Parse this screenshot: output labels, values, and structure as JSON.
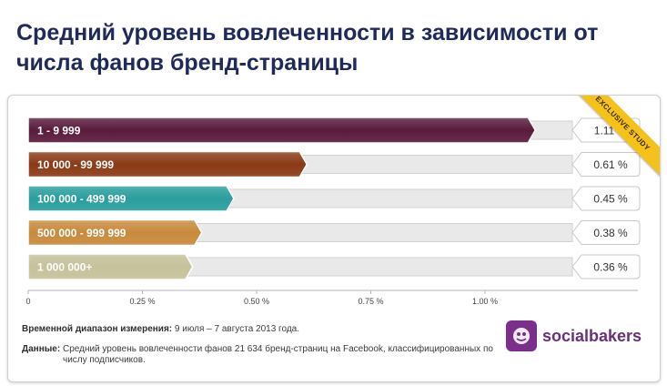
{
  "title": "Средний уровень вовлеченности в зависимости от числа фанов бренд-страницы",
  "ribbon_text": "EXCLUSIVE STUDY",
  "chart_data": {
    "type": "bar",
    "orientation": "horizontal",
    "categories": [
      "1 - 9 999",
      "10 000 - 99 999",
      "100 000 - 499 999",
      "500 000 - 999 999",
      "1 000 000+"
    ],
    "values": [
      1.11,
      0.61,
      0.45,
      0.38,
      0.36
    ],
    "value_labels": [
      "1.11 %",
      "0.61 %",
      "0.45 %",
      "0.38 %",
      "0.36 %"
    ],
    "colors": [
      "#5a1a3c",
      "#8a3a15",
      "#2a9e9e",
      "#c98a3c",
      "#c6c29a"
    ],
    "x_ticks": [
      0,
      0.25,
      0.5,
      0.75,
      1.0
    ],
    "x_tick_labels": [
      "0",
      "0.25 %",
      "0.50 %",
      "0.75 %",
      "1.00 %"
    ],
    "xlim": [
      0,
      1.25
    ]
  },
  "footer": {
    "period_label": "Временной диапазон измерения:",
    "period_value": "9 июля – 7 августа 2013 года.",
    "data_label": "Данные:",
    "data_value": "Средний уровень вовлеченности фанов 21 634 бренд-страниц на Facebook, классифицированных по числу подписчиков."
  },
  "logo": {
    "text": "socialbakers",
    "icon": "socialbakers-logo-icon"
  }
}
